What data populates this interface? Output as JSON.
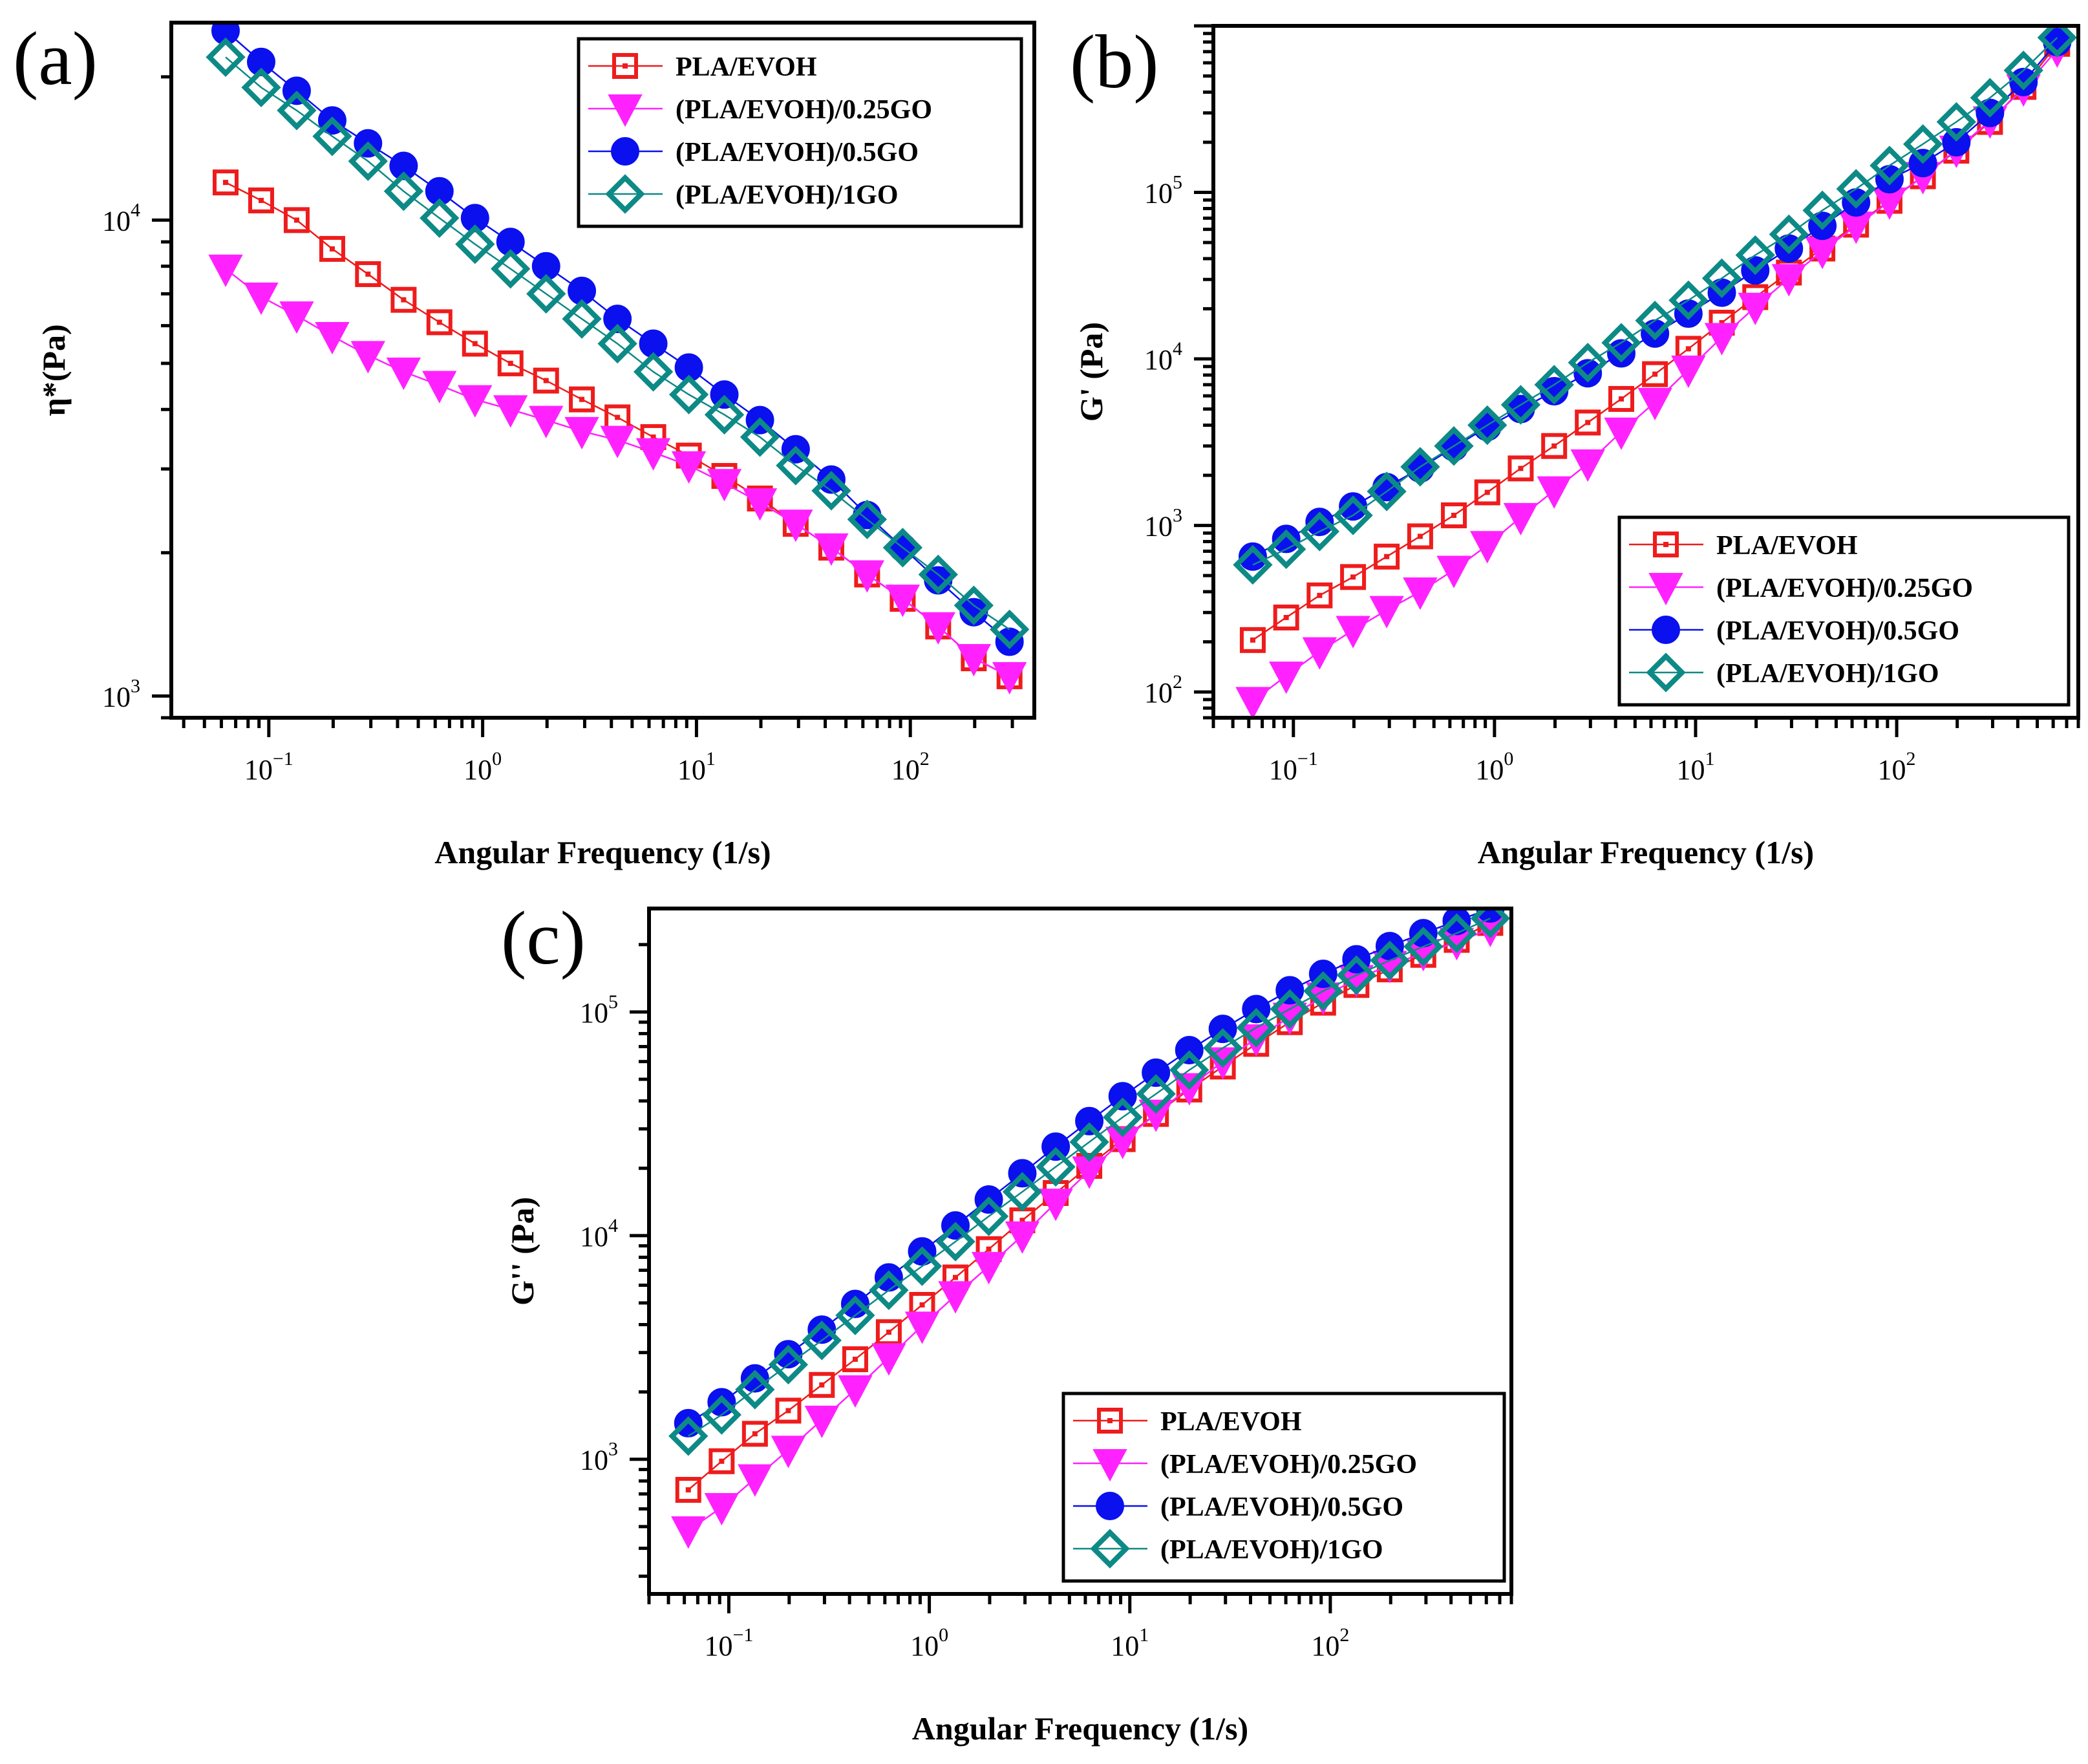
{
  "chart_data": [
    {
      "type": "scatter",
      "panel_label": "(a)",
      "title": "",
      "xlabel": "Angular Frequency (1/s)",
      "ylabel": "η*(Pa)",
      "xscale": "log",
      "yscale": "log",
      "xlim": [
        0.035,
        380
      ],
      "ylim": [
        900,
        26000
      ],
      "x_ticks": [
        {
          "base": "10",
          "exp": "−1"
        },
        {
          "base": "10",
          "exp": "0"
        },
        {
          "base": "10",
          "exp": "1"
        },
        {
          "base": "10",
          "exp": "2"
        }
      ],
      "y_ticks": [
        {
          "base": "10",
          "exp": "3"
        },
        {
          "base": "10",
          "exp": "4"
        }
      ],
      "grid": false,
      "legend_position": "top-right",
      "x": [
        0.0628,
        0.0921,
        0.135,
        0.198,
        0.291,
        0.427,
        0.628,
        0.921,
        1.35,
        1.98,
        2.91,
        4.27,
        6.28,
        9.21,
        13.5,
        19.8,
        29.1,
        42.7,
        62.8,
        92.1,
        135,
        198,
        291
      ],
      "series": [
        {
          "name": "PLA/EVOH",
          "color": "#ee1c1c",
          "marker": "square-open",
          "values": [
            12000,
            11000,
            10000,
            8700,
            7700,
            6800,
            6100,
            5500,
            5000,
            4600,
            4200,
            3850,
            3500,
            3200,
            2900,
            2600,
            2300,
            2050,
            1800,
            1600,
            1400,
            1200,
            1100
          ]
        },
        {
          "name": "(PLA/EVOH)/0.25GO",
          "color": "#ff22ff",
          "marker": "triangle-down",
          "values": [
            7900,
            6900,
            6300,
            5700,
            5200,
            4800,
            4500,
            4200,
            4000,
            3800,
            3600,
            3450,
            3250,
            3050,
            2800,
            2550,
            2300,
            2050,
            1800,
            1600,
            1400,
            1200,
            1100
          ]
        },
        {
          "name": "(PLA/EVOH)/0.5GO",
          "color": "#0a10ee",
          "marker": "circle",
          "values": [
            25000,
            21500,
            18700,
            16200,
            14500,
            13000,
            11500,
            10100,
            9000,
            8000,
            7100,
            6200,
            5500,
            4900,
            4300,
            3800,
            3300,
            2850,
            2400,
            2050,
            1750,
            1500,
            1300
          ]
        },
        {
          "name": "(PLA/EVOH)/1GO",
          "color": "#0d8a86",
          "marker": "diamond-open",
          "values": [
            22000,
            19000,
            17000,
            15000,
            13300,
            11500,
            10100,
            8900,
            7900,
            7000,
            6200,
            5500,
            4800,
            4300,
            3900,
            3500,
            3050,
            2700,
            2350,
            2050,
            1800,
            1550,
            1380
          ]
        }
      ]
    },
    {
      "type": "scatter",
      "panel_label": "(b)",
      "title": "",
      "xlabel": "Angular Frequency (1/s)",
      "ylabel": "G' (Pa)",
      "xscale": "log",
      "yscale": "log",
      "xlim": [
        0.04,
        800
      ],
      "ylim": [
        70,
        1000000
      ],
      "x_ticks": [
        {
          "base": "10",
          "exp": "−1"
        },
        {
          "base": "10",
          "exp": "0"
        },
        {
          "base": "10",
          "exp": "1"
        },
        {
          "base": "10",
          "exp": "2"
        }
      ],
      "y_ticks": [
        {
          "base": "10",
          "exp": "2"
        },
        {
          "base": "10",
          "exp": "3"
        },
        {
          "base": "10",
          "exp": "4"
        },
        {
          "base": "10",
          "exp": "5"
        }
      ],
      "grid": false,
      "legend_position": "bottom-right",
      "x": [
        0.0628,
        0.0921,
        0.135,
        0.198,
        0.291,
        0.427,
        0.628,
        0.921,
        1.35,
        1.98,
        2.91,
        4.27,
        6.28,
        9.21,
        13.5,
        19.8,
        29.1,
        42.7,
        62.8,
        92.1,
        135,
        198,
        291,
        427,
        628
      ],
      "series": [
        {
          "name": "PLA/EVOH",
          "color": "#ee1c1c",
          "marker": "square-open",
          "values": [
            205,
            280,
            380,
            490,
            650,
            860,
            1150,
            1580,
            2200,
            3000,
            4150,
            5750,
            8100,
            11500,
            16500,
            23500,
            33000,
            46000,
            64000,
            89000,
            125000,
            178000,
            265000,
            430000,
            780000
          ]
        },
        {
          "name": "(PLA/EVOH)/0.25GO",
          "color": "#ff22ff",
          "marker": "triangle-down",
          "values": [
            88,
            125,
            175,
            235,
            310,
            400,
            540,
            760,
            1120,
            1620,
            2350,
            3650,
            5500,
            8600,
            13500,
            20500,
            30500,
            44500,
            63000,
            88000,
            125000,
            180000,
            270000,
            420000,
            720000
          ]
        },
        {
          "name": "(PLA/EVOH)/0.5GO",
          "color": "#0a10ee",
          "marker": "circle",
          "values": [
            650,
            830,
            1050,
            1300,
            1700,
            2200,
            2950,
            3900,
            5000,
            6400,
            8200,
            10800,
            14200,
            18700,
            25000,
            34000,
            46000,
            63000,
            87000,
            120000,
            150000,
            200000,
            300000,
            460000,
            800000
          ]
        },
        {
          "name": "(PLA/EVOH)/1GO",
          "color": "#0d8a86",
          "marker": "diamond-open",
          "values": [
            580,
            720,
            920,
            1150,
            1600,
            2250,
            3000,
            4000,
            5300,
            7000,
            9500,
            12500,
            17000,
            22500,
            30500,
            42000,
            56000,
            78000,
            105000,
            145000,
            195000,
            265000,
            370000,
            540000,
            850000
          ]
        }
      ]
    },
    {
      "type": "scatter",
      "panel_label": "(c)",
      "title": "",
      "xlabel": "Angular Frequency (1/s)",
      "ylabel": "G'' (Pa)",
      "xscale": "log",
      "yscale": "log",
      "xlim": [
        0.04,
        800
      ],
      "ylim": [
        250,
        290000
      ],
      "x_ticks": [
        {
          "base": "10",
          "exp": "−1"
        },
        {
          "base": "10",
          "exp": "0"
        },
        {
          "base": "10",
          "exp": "1"
        },
        {
          "base": "10",
          "exp": "2"
        }
      ],
      "y_ticks": [
        {
          "base": "10",
          "exp": "3"
        },
        {
          "base": "10",
          "exp": "4"
        },
        {
          "base": "10",
          "exp": "5"
        }
      ],
      "grid": false,
      "legend_position": "bottom-right",
      "x": [
        0.0628,
        0.0921,
        0.135,
        0.198,
        0.291,
        0.427,
        0.628,
        0.921,
        1.35,
        1.98,
        2.91,
        4.27,
        6.28,
        9.21,
        13.5,
        19.8,
        29.1,
        42.7,
        62.8,
        92.1,
        135,
        198,
        291,
        427,
        628
      ],
      "series": [
        {
          "name": "PLA/EVOH",
          "color": "#ee1c1c",
          "marker": "square-open",
          "values": [
            730,
            980,
            1300,
            1650,
            2150,
            2800,
            3700,
            4900,
            6500,
            8700,
            11700,
            15500,
            20500,
            27000,
            35000,
            45000,
            57000,
            72000,
            90000,
            110000,
            132000,
            155000,
            180000,
            210000,
            250000
          ]
        },
        {
          "name": "(PLA/EVOH)/0.25GO",
          "color": "#ff22ff",
          "marker": "triangle-down",
          "values": [
            480,
            610,
            820,
            1100,
            1500,
            2050,
            2850,
            3950,
            5400,
            7300,
            10000,
            14000,
            19500,
            26500,
            35000,
            46000,
            60000,
            76000,
            95000,
            117000,
            140000,
            162000,
            183000,
            205000,
            235000
          ]
        },
        {
          "name": "(PLA/EVOH)/0.5GO",
          "color": "#0a10ee",
          "marker": "circle",
          "values": [
            1450,
            1800,
            2300,
            2950,
            3800,
            4950,
            6500,
            8500,
            11100,
            14500,
            19000,
            25000,
            32500,
            42000,
            53500,
            67500,
            84000,
            103000,
            125000,
            148000,
            172000,
            197000,
            225000,
            255000,
            290000
          ]
        },
        {
          "name": "(PLA/EVOH)/1GO",
          "color": "#0d8a86",
          "marker": "diamond-open",
          "values": [
            1270,
            1580,
            2050,
            2650,
            3400,
            4400,
            5700,
            7300,
            9400,
            12200,
            15700,
            20300,
            26200,
            33800,
            43000,
            55000,
            69000,
            85000,
            103000,
            124000,
            146000,
            170000,
            196000,
            225000,
            262000
          ]
        }
      ]
    }
  ]
}
